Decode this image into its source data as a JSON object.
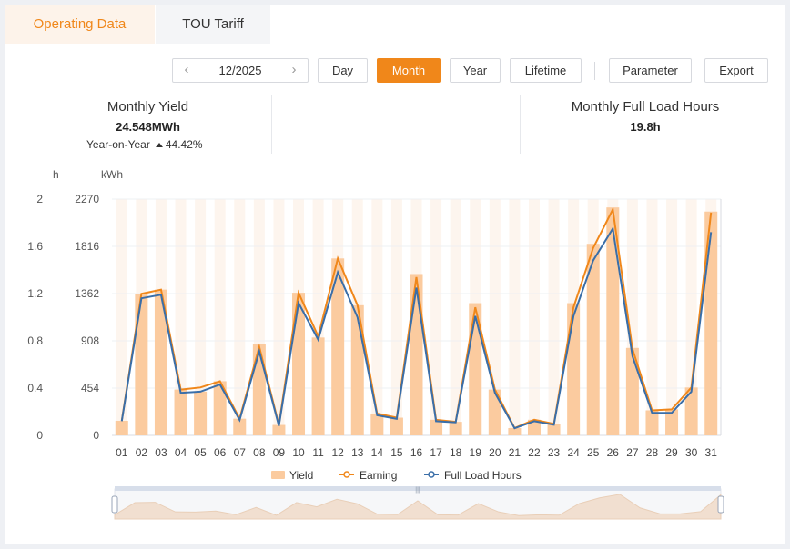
{
  "tabs": [
    {
      "label": "Operating Data",
      "active": true
    },
    {
      "label": "TOU Tariff",
      "active": false
    }
  ],
  "toolbar": {
    "date": "12/2025",
    "prev_icon": "chevron-left-icon",
    "next_icon": "chevron-right-icon",
    "periods": [
      "Day",
      "Month",
      "Year",
      "Lifetime"
    ],
    "active_period": "Month",
    "parameter_label": "Parameter",
    "export_label": "Export"
  },
  "stats": {
    "yield_title": "Monthly Yield",
    "yield_value": "24.548MWh",
    "yoy_label": "Year-on-Year",
    "yoy_value": "44.42%",
    "flh_title": "Monthly Full Load Hours",
    "flh_value": "19.8h"
  },
  "colors": {
    "accent": "#f0871a",
    "yield_bar": "#fbcb9f",
    "earning_line": "#f0871a",
    "flh_line": "#3a6ea8"
  },
  "chart_data": {
    "type": "bar",
    "title": "",
    "ylabel_left": "h",
    "ylabel_right": "kWh",
    "ylim_left": [
      0,
      2
    ],
    "left_ticks": [
      "0",
      "0.4",
      "0.8",
      "1.2",
      "1.6",
      "2"
    ],
    "ylim_right": [
      0,
      2270
    ],
    "right_ticks": [
      "0",
      "454",
      "908",
      "1362",
      "1816",
      "2270"
    ],
    "categories": [
      "01",
      "02",
      "03",
      "04",
      "05",
      "06",
      "07",
      "08",
      "09",
      "10",
      "11",
      "12",
      "13",
      "14",
      "15",
      "16",
      "17",
      "18",
      "19",
      "20",
      "21",
      "22",
      "23",
      "24",
      "25",
      "26",
      "27",
      "28",
      "29",
      "30",
      "31"
    ],
    "legend": {
      "position": "bottom"
    },
    "series": [
      {
        "name": "Yield",
        "type": "bar",
        "axis": "right",
        "values": [
          140,
          1360,
          1400,
          440,
          420,
          520,
          160,
          880,
          100,
          1370,
          940,
          1700,
          1250,
          210,
          170,
          1550,
          150,
          130,
          1270,
          440,
          70,
          150,
          110,
          1270,
          1840,
          2190,
          840,
          240,
          250,
          460,
          2150
        ]
      },
      {
        "name": "Earning",
        "type": "line",
        "axis": "right",
        "values": [
          140,
          1360,
          1400,
          440,
          460,
          520,
          160,
          850,
          100,
          1370,
          950,
          1700,
          1250,
          210,
          170,
          1520,
          150,
          130,
          1230,
          440,
          70,
          150,
          110,
          1230,
          1800,
          2170,
          830,
          240,
          250,
          460,
          2140
        ]
      },
      {
        "name": "Full Load Hours",
        "type": "line",
        "axis": "left",
        "values": [
          0.12,
          1.16,
          1.19,
          0.36,
          0.37,
          0.43,
          0.13,
          0.71,
          0.08,
          1.12,
          0.81,
          1.38,
          1.0,
          0.17,
          0.14,
          1.25,
          0.12,
          0.11,
          1.01,
          0.36,
          0.06,
          0.12,
          0.09,
          1.01,
          1.48,
          1.75,
          0.67,
          0.19,
          0.19,
          0.37,
          1.72
        ]
      }
    ]
  }
}
